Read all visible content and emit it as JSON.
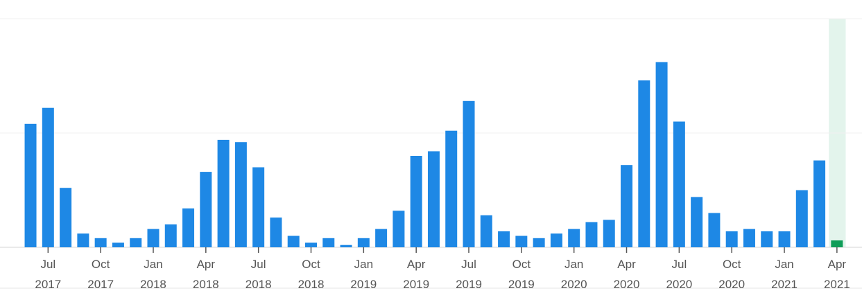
{
  "chart_data": {
    "type": "bar",
    "categories": [
      null,
      "Jul 2017",
      null,
      null,
      "Oct 2017",
      null,
      null,
      "Jan 2018",
      null,
      null,
      "Apr 2018",
      null,
      null,
      "Jul 2018",
      null,
      null,
      "Oct 2018",
      null,
      null,
      "Jan 2019",
      null,
      null,
      "Apr 2019",
      null,
      null,
      "Jul 2019",
      null,
      null,
      "Oct 2019",
      null,
      null,
      "Jan 2020",
      null,
      null,
      "Apr 2020",
      null,
      null,
      "Jul 2020",
      null,
      null,
      "Oct 2020",
      null,
      null,
      "Jan 2021",
      null,
      null,
      "Apr 2021"
    ],
    "values": [
      54,
      61,
      26,
      6,
      4,
      2,
      4,
      8,
      10,
      17,
      33,
      47,
      46,
      35,
      13,
      5,
      2,
      4,
      1,
      4,
      8,
      16,
      40,
      42,
      51,
      64,
      14,
      7,
      5,
      4,
      6,
      8,
      11,
      12,
      36,
      73,
      81,
      55,
      22,
      15,
      7,
      8,
      7,
      7,
      25,
      38,
      3
    ],
    "color": "#1e88e5",
    "colors": [
      "#1e88e5",
      "#1e88e5",
      "#1e88e5",
      "#1e88e5",
      "#1e88e5",
      "#1e88e5",
      "#1e88e5",
      "#1e88e5",
      "#1e88e5",
      "#1e88e5",
      "#1e88e5",
      "#1e88e5",
      "#1e88e5",
      "#1e88e5",
      "#1e88e5",
      "#1e88e5",
      "#1e88e5",
      "#1e88e5",
      "#1e88e5",
      "#1e88e5",
      "#1e88e5",
      "#1e88e5",
      "#1e88e5",
      "#1e88e5",
      "#1e88e5",
      "#1e88e5",
      "#1e88e5",
      "#1e88e5",
      "#1e88e5",
      "#1e88e5",
      "#1e88e5",
      "#1e88e5",
      "#1e88e5",
      "#1e88e5",
      "#1e88e5",
      "#1e88e5",
      "#1e88e5",
      "#1e88e5",
      "#1e88e5",
      "#1e88e5",
      "#1e88e5",
      "#1e88e5",
      "#1e88e5",
      "#1e88e5",
      "#1e88e5",
      "#1e88e5",
      "#0f9d58"
    ],
    "highlight_color": "#e3f4ec",
    "ylim": [
      0,
      100
    ],
    "yticks": [
      0,
      50,
      100
    ],
    "grid": true
  }
}
